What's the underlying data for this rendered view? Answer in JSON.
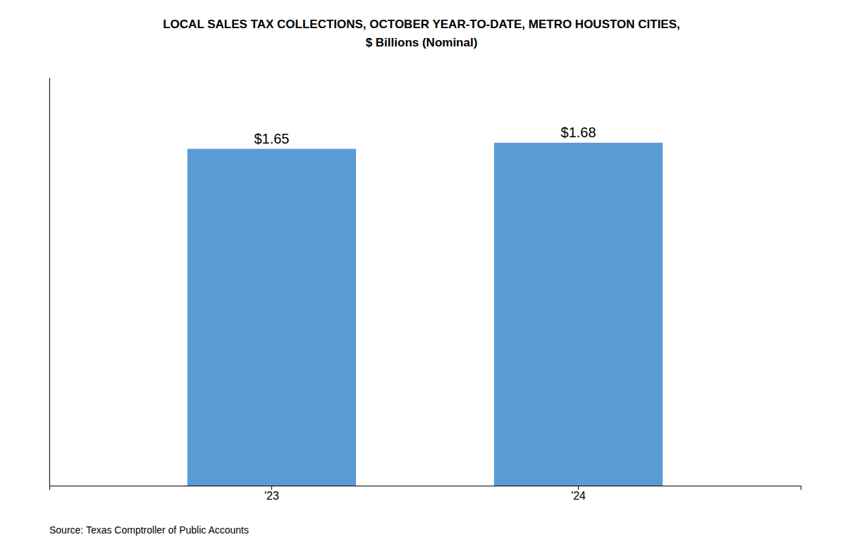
{
  "chart_data": {
    "type": "bar",
    "title": "LOCAL SALES TAX COLLECTIONS, OCTOBER YEAR-TO-DATE, METRO HOUSTON CITIES,",
    "subtitle": "$ Billions (Nominal)",
    "categories": [
      "'23",
      "'24"
    ],
    "values": [
      1.65,
      1.68
    ],
    "value_labels": [
      "$1.65",
      "$1.68"
    ],
    "data_labels": true,
    "color": "#5B9BD5",
    "ylim": [
      0,
      2.0
    ],
    "grid": false,
    "tick_labels": "x",
    "source": "Source: Texas Comptroller of Public Accounts"
  }
}
